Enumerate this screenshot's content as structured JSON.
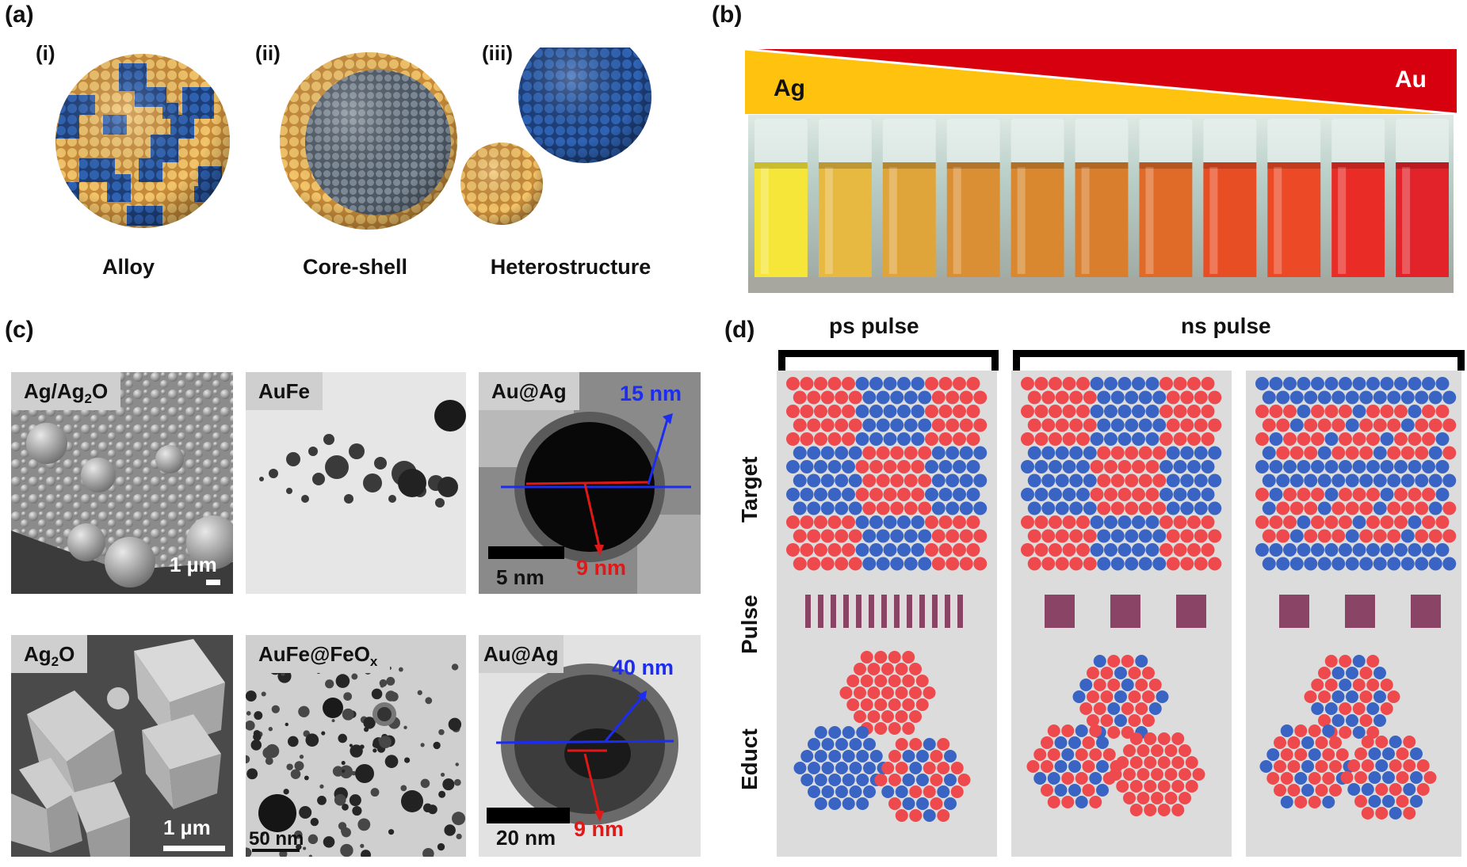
{
  "panel_a": {
    "label": "(a)",
    "items": [
      {
        "sub": "(i)",
        "caption": "Alloy"
      },
      {
        "sub": "(ii)",
        "caption": "Core-shell"
      },
      {
        "sub": "(iii)",
        "caption": "Heterostructure"
      }
    ]
  },
  "panel_b": {
    "label": "(b)",
    "left": "Ag",
    "right": "Au",
    "vial_colors": [
      "#f6e63a",
      "#e7b940",
      "#dfa43a",
      "#db8f34",
      "#d9882f",
      "#d97e2c",
      "#e06b28",
      "#e84e24",
      "#ec4a26",
      "#e92d26",
      "#e3232a"
    ]
  },
  "panel_c": {
    "label": "(c)",
    "images": [
      {
        "tag": "Ag/Ag",
        "tag_sub": "2",
        "tag_tail": "O",
        "scale": "1 µm"
      },
      {
        "tag": "AuFe",
        "tag_sub": "",
        "tag_tail": "",
        "scale": ""
      },
      {
        "tag": "Au@Ag",
        "tag_sub": "",
        "tag_tail": "",
        "scale": "5 nm",
        "blue": "15 nm",
        "red": "9 nm"
      },
      {
        "tag": "Ag",
        "tag_sub": "2",
        "tag_tail": "O",
        "scale": "1 µm"
      },
      {
        "tag": "AuFe@FeO",
        "tag_sub": "x",
        "tag_tail": "",
        "scale": "50 nm"
      },
      {
        "tag": "Au@Ag",
        "tag_sub": "",
        "tag_tail": "",
        "scale": "20 nm",
        "blue": "40 nm",
        "red": "9 nm"
      }
    ]
  },
  "panel_d": {
    "label": "(d)",
    "ps": "ps pulse",
    "ns": "ns pulse",
    "rows": [
      "Target",
      "Pulse",
      "Educt"
    ],
    "colors": {
      "red": "#ee4a4e",
      "blue": "#3a64c4",
      "pulse": "#8a4466"
    }
  }
}
